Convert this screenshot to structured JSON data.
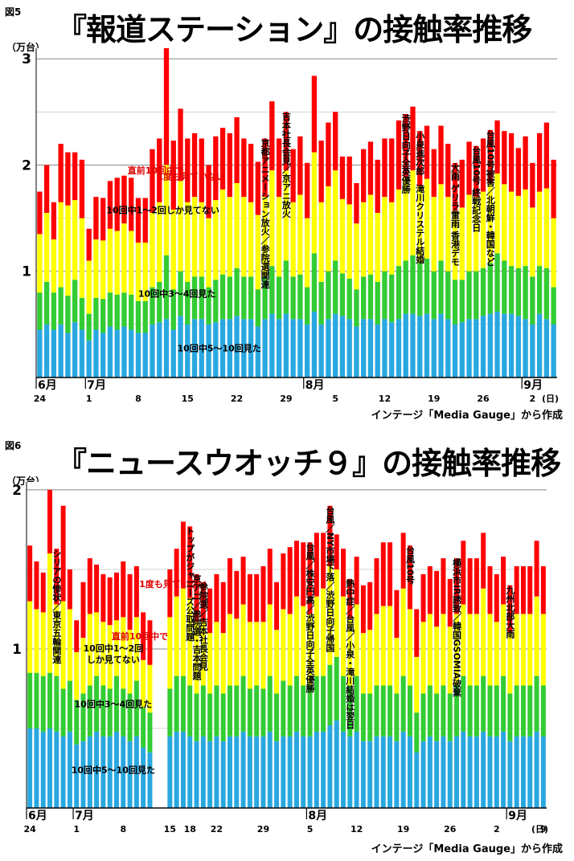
{
  "source_credit": "インテージ「Media Gauge」から作成",
  "colors": {
    "blue": "#29a8e0",
    "green": "#33cc33",
    "yellow": "#ffff00",
    "red": "#ff0000",
    "grid": "#888888"
  },
  "chart_data": [
    {
      "type": "bar",
      "stacked": true,
      "figure_label": "図5",
      "title": "『報道ステーション』の接触率推移",
      "ylabel": "（万台）",
      "ylim": [
        0,
        3.1
      ],
      "yticks": [
        1,
        2,
        3
      ],
      "grid": true,
      "x_ticks": [
        "24",
        "1",
        "8",
        "15",
        "22",
        "29",
        "5",
        "12",
        "19",
        "26",
        "2"
      ],
      "x_tick_days": [
        0,
        7,
        14,
        21,
        28,
        35,
        42,
        49,
        56,
        63,
        70
      ],
      "day_suffix": "(日)",
      "months": [
        {
          "label": "6月",
          "day": 0
        },
        {
          "label": "7月",
          "day": 7
        },
        {
          "label": "8月",
          "day": 38
        },
        {
          "label": "9月",
          "day": 69
        }
      ],
      "day_offsets": [
        0,
        1,
        2,
        3,
        4,
        5,
        6,
        7,
        8,
        9,
        10,
        11,
        12,
        13,
        14,
        15,
        16,
        17,
        18,
        19,
        20,
        21,
        22,
        23,
        24,
        25,
        26,
        27,
        28,
        29,
        30,
        31,
        32,
        33,
        34,
        35,
        36,
        37,
        38,
        39,
        40,
        41,
        42,
        43,
        44,
        45,
        46,
        47,
        48,
        49,
        50,
        51,
        52,
        53,
        54,
        55,
        56,
        57,
        58,
        59,
        60,
        61,
        62,
        63,
        64,
        65,
        66,
        67,
        68,
        69,
        70,
        71,
        72,
        73
      ],
      "series": [
        {
          "name": "10回中5～10回見た",
          "color": "blue",
          "values": [
            0.45,
            0.5,
            0.45,
            0.5,
            0.42,
            0.52,
            0.45,
            0.35,
            0.45,
            0.42,
            0.48,
            0.45,
            0.48,
            0.45,
            0.42,
            0.42,
            0.5,
            0.52,
            0.55,
            0.45,
            0.58,
            0.5,
            0.55,
            0.55,
            0.5,
            0.52,
            0.55,
            0.55,
            0.58,
            0.55,
            0.55,
            0.48,
            0.55,
            0.6,
            0.55,
            0.6,
            0.55,
            0.55,
            0.5,
            0.62,
            0.5,
            0.55,
            0.6,
            0.58,
            0.55,
            0.48,
            0.55,
            0.55,
            0.5,
            0.55,
            0.52,
            0.55,
            0.6,
            0.6,
            0.58,
            0.6,
            0.55,
            0.6,
            0.55,
            0.5,
            0.52,
            0.55,
            0.55,
            0.58,
            0.6,
            0.62,
            0.6,
            0.6,
            0.58,
            0.55,
            0.5,
            0.6,
            0.55,
            0.5
          ]
        },
        {
          "name": "10回中3～4回見た",
          "color": "green",
          "values": [
            0.35,
            0.4,
            0.35,
            0.35,
            0.35,
            0.4,
            0.3,
            0.25,
            0.3,
            0.32,
            0.32,
            0.33,
            0.32,
            0.33,
            0.3,
            0.3,
            0.35,
            0.38,
            0.6,
            0.38,
            0.42,
            0.4,
            0.4,
            0.4,
            0.35,
            0.4,
            0.42,
            0.4,
            0.45,
            0.4,
            0.4,
            0.35,
            0.4,
            0.45,
            0.4,
            0.5,
            0.4,
            0.42,
            0.35,
            0.55,
            0.4,
            0.45,
            0.5,
            0.4,
            0.38,
            0.35,
            0.4,
            0.42,
            0.4,
            0.45,
            0.45,
            0.5,
            0.5,
            0.55,
            0.5,
            0.52,
            0.45,
            0.5,
            0.45,
            0.42,
            0.4,
            0.45,
            0.45,
            0.45,
            0.48,
            0.55,
            0.5,
            0.45,
            0.45,
            0.5,
            0.45,
            0.45,
            0.48,
            0.35
          ]
        },
        {
          "name": "10回中1～2回しか見てない",
          "color": "yellow",
          "values": [
            0.55,
            0.65,
            0.5,
            0.8,
            0.85,
            0.75,
            0.75,
            0.5,
            0.55,
            0.55,
            0.6,
            0.6,
            0.65,
            0.6,
            0.55,
            0.55,
            0.7,
            0.75,
            0.85,
            0.75,
            0.85,
            0.75,
            0.75,
            0.7,
            0.65,
            0.75,
            0.8,
            0.75,
            0.8,
            0.75,
            0.7,
            0.7,
            0.75,
            0.9,
            0.75,
            0.85,
            0.7,
            0.75,
            0.65,
            0.95,
            0.75,
            0.8,
            0.85,
            0.7,
            0.7,
            0.62,
            0.7,
            0.75,
            0.65,
            0.7,
            0.68,
            0.72,
            0.78,
            0.8,
            0.72,
            0.75,
            0.7,
            0.72,
            0.7,
            0.65,
            0.68,
            0.72,
            0.7,
            0.72,
            0.75,
            0.75,
            0.72,
            0.7,
            0.68,
            0.72,
            0.65,
            0.7,
            0.75,
            0.65
          ]
        },
        {
          "name": "直前10回中で1度も見ていない",
          "color": "red",
          "values": [
            0.4,
            0.45,
            0.35,
            0.55,
            0.5,
            0.45,
            0.55,
            0.3,
            0.4,
            0.4,
            0.45,
            0.5,
            0.45,
            0.5,
            0.42,
            0.42,
            0.6,
            0.6,
            1.1,
            0.65,
            0.68,
            0.6,
            0.6,
            0.6,
            0.5,
            0.6,
            0.58,
            0.6,
            0.62,
            0.55,
            0.55,
            0.5,
            0.55,
            0.65,
            0.55,
            0.55,
            0.5,
            0.55,
            0.52,
            0.72,
            0.58,
            0.6,
            0.55,
            0.4,
            0.45,
            0.38,
            0.5,
            0.5,
            0.5,
            0.55,
            0.6,
            0.65,
            0.6,
            0.6,
            0.52,
            0.5,
            0.45,
            0.55,
            0.5,
            0.45,
            0.45,
            0.5,
            0.48,
            0.5,
            0.5,
            0.5,
            0.5,
            0.55,
            0.45,
            0.5,
            0.42,
            0.55,
            0.62,
            0.55
          ]
        }
      ],
      "band_labels": [
        {
          "text": "直前10回中で",
          "series": 3,
          "day": 17
        },
        {
          "text": "1度も見ていない",
          "series": 3,
          "day": 22
        },
        {
          "text": "10回中1～2回しか見てない",
          "series": 2,
          "day": 18
        },
        {
          "text": "10回中3～4回見た",
          "series": 1,
          "day": 20
        },
        {
          "text": "10回中5～10回見た",
          "series": 0,
          "day": 26
        }
      ],
      "annotations": [
        {
          "day": 32,
          "text": "京都アニメーション放火／参院選関連"
        },
        {
          "day": 35,
          "text": "吉本社長会見／京アニ放火"
        },
        {
          "day": 52,
          "text": "渋野日向子全英優勝"
        },
        {
          "day": 54,
          "text": "小泉進次郎　滝川クリステル結婚"
        },
        {
          "day": 59,
          "text": "大雨 ゲリラ雷雨 香港デモ"
        },
        {
          "day": 62,
          "text": "台風10号 終戦記念日"
        },
        {
          "day": 64,
          "text": "台風10号被害／北朝鮮・韓国など"
        }
      ]
    },
    {
      "type": "bar",
      "stacked": true,
      "figure_label": "図6",
      "title": "『ニュースウオッチ９』の接触率推移",
      "ylabel": "（万台）",
      "ylim": [
        0,
        2.05
      ],
      "yticks": [
        1,
        2
      ],
      "grid": true,
      "x_ticks": [
        "24",
        "1",
        "8",
        "15",
        "18",
        "22",
        "29",
        "5",
        "12",
        "19",
        "26",
        "2",
        "9"
      ],
      "x_tick_days": [
        0,
        7,
        14,
        21,
        24,
        28,
        35,
        42,
        49,
        56,
        63,
        70,
        77
      ],
      "day_suffix": "(日)",
      "months": [
        {
          "label": "6月",
          "day": 0
        },
        {
          "label": "7月",
          "day": 7
        },
        {
          "label": "8月",
          "day": 42
        },
        {
          "label": "9月",
          "day": 72
        }
      ],
      "day_offsets": [
        0,
        1,
        2,
        3,
        4,
        5,
        6,
        7,
        8,
        9,
        10,
        11,
        12,
        13,
        14,
        15,
        16,
        17,
        18,
        21,
        22,
        23,
        24,
        25,
        26,
        27,
        28,
        29,
        30,
        31,
        32,
        33,
        34,
        35,
        36,
        37,
        38,
        39,
        40,
        41,
        42,
        43,
        44,
        45,
        46,
        47,
        48,
        49,
        50,
        51,
        52,
        53,
        54,
        55,
        56,
        57,
        58,
        59,
        60,
        61,
        62,
        63,
        64,
        65,
        66,
        67,
        68,
        69,
        70,
        71,
        72,
        73,
        74,
        75,
        76,
        77
      ],
      "series": [
        {
          "name": "10回中5～10回見た",
          "color": "blue",
          "values": [
            0.5,
            0.5,
            0.48,
            0.5,
            0.48,
            0.45,
            0.48,
            0.4,
            0.42,
            0.45,
            0.48,
            0.45,
            0.45,
            0.48,
            0.45,
            0.42,
            0.45,
            0.38,
            0.35,
            0.45,
            0.48,
            0.48,
            0.45,
            0.42,
            0.45,
            0.42,
            0.45,
            0.42,
            0.45,
            0.45,
            0.48,
            0.45,
            0.45,
            0.45,
            0.48,
            0.42,
            0.45,
            0.45,
            0.48,
            0.45,
            0.45,
            0.48,
            0.48,
            0.52,
            0.55,
            0.48,
            0.45,
            0.48,
            0.42,
            0.42,
            0.45,
            0.45,
            0.45,
            0.42,
            0.48,
            0.45,
            0.35,
            0.42,
            0.45,
            0.42,
            0.45,
            0.42,
            0.45,
            0.48,
            0.45,
            0.45,
            0.48,
            0.45,
            0.45,
            0.48,
            0.42,
            0.45,
            0.45,
            0.45,
            0.48,
            0.45
          ]
        },
        {
          "name": "10回中3～4回見た",
          "color": "green",
          "values": [
            0.35,
            0.35,
            0.35,
            0.35,
            0.35,
            0.3,
            0.32,
            0.28,
            0.3,
            0.32,
            0.35,
            0.32,
            0.3,
            0.35,
            0.3,
            0.3,
            0.35,
            0.25,
            0.25,
            0.3,
            0.35,
            0.35,
            0.32,
            0.3,
            0.32,
            0.3,
            0.32,
            0.3,
            0.32,
            0.32,
            0.35,
            0.3,
            0.32,
            0.3,
            0.35,
            0.3,
            0.35,
            0.32,
            0.35,
            0.32,
            0.32,
            0.35,
            0.35,
            0.38,
            0.4,
            0.35,
            0.32,
            0.35,
            0.3,
            0.3,
            0.32,
            0.32,
            0.32,
            0.3,
            0.35,
            0.32,
            0.25,
            0.3,
            0.32,
            0.3,
            0.32,
            0.3,
            0.32,
            0.35,
            0.32,
            0.32,
            0.35,
            0.32,
            0.32,
            0.35,
            0.3,
            0.32,
            0.32,
            0.32,
            0.35,
            0.32
          ]
        },
        {
          "name": "10回中1～2回しか見てない",
          "color": "yellow",
          "values": [
            0.45,
            0.4,
            0.4,
            0.75,
            0.45,
            0.55,
            0.45,
            0.3,
            0.35,
            0.45,
            0.4,
            0.4,
            0.4,
            0.35,
            0.45,
            0.4,
            0.4,
            0.3,
            0.3,
            0.45,
            0.5,
            0.55,
            0.55,
            0.45,
            0.4,
            0.38,
            0.4,
            0.38,
            0.45,
            0.42,
            0.45,
            0.42,
            0.4,
            0.42,
            0.45,
            0.4,
            0.45,
            0.45,
            0.5,
            0.5,
            0.45,
            0.5,
            0.55,
            0.62,
            0.55,
            0.5,
            0.42,
            0.45,
            0.38,
            0.4,
            0.45,
            0.5,
            0.5,
            0.35,
            0.55,
            0.48,
            0.35,
            0.45,
            0.45,
            0.42,
            0.45,
            0.42,
            0.45,
            0.45,
            0.45,
            0.45,
            0.55,
            0.45,
            0.4,
            0.45,
            0.38,
            0.45,
            0.45,
            0.45,
            0.5,
            0.45
          ]
        },
        {
          "name": "直前10回中で1度も見ていない",
          "color": "red",
          "values": [
            0.35,
            0.3,
            0.25,
            0.4,
            0.35,
            0.6,
            0.25,
            0.2,
            0.35,
            0.35,
            0.3,
            0.3,
            0.3,
            0.3,
            0.35,
            0.35,
            0.32,
            0.3,
            0.28,
            0.3,
            0.3,
            0.42,
            0.45,
            0.3,
            0.25,
            0.28,
            0.3,
            0.32,
            0.35,
            0.3,
            0.3,
            0.3,
            0.3,
            0.35,
            0.35,
            0.3,
            0.35,
            0.42,
            0.35,
            0.4,
            0.45,
            0.4,
            0.35,
            0.38,
            0.22,
            0.3,
            0.25,
            0.3,
            0.3,
            0.3,
            0.35,
            0.4,
            0.4,
            0.3,
            0.35,
            0.4,
            0.3,
            0.3,
            0.3,
            0.35,
            0.35,
            0.3,
            0.35,
            0.4,
            0.35,
            0.35,
            0.35,
            0.3,
            0.3,
            0.3,
            0.3,
            0.3,
            0.3,
            0.3,
            0.35,
            0.3
          ]
        }
      ],
      "band_labels": [
        {
          "text": "直前10回中で",
          "series": 3,
          "day": 17
        },
        {
          "text": "1度も見ていない",
          "series": 3,
          "day": 22
        },
        {
          "text": "10回中1～2回",
          "series": 2,
          "day": 13
        },
        {
          "text": "しか見てない",
          "series": 2,
          "day": 13
        },
        {
          "text": "10回中3～4回見た",
          "series": 1,
          "day": 13
        },
        {
          "text": "10回中5～10回見た",
          "series": 0,
          "day": 13
        }
      ],
      "annotations": [
        {
          "day": 4,
          "text": "シリアの惨状／東京五輪関連"
        },
        {
          "day": 24,
          "text": "トップがジャニーズ公取問題"
        },
        {
          "day": 25,
          "text": "京アニ／参院選・吉本問題"
        },
        {
          "day": 26,
          "text": "参院選／吉本社長会見"
        },
        {
          "day": 42,
          "text": "台風／株安円高／渋野日向子全英優勝"
        },
        {
          "day": 45,
          "text": "台風／NY市場下落／渋野日向子帰国"
        },
        {
          "day": 48,
          "text": "熱中症／台風／小泉・滝川結婚は翌日"
        },
        {
          "day": 57,
          "text": "台風10号"
        },
        {
          "day": 64,
          "text": "横浜市IR誘致／韓国GSOMIA破棄"
        },
        {
          "day": 72,
          "text": "九州北部大雨"
        }
      ]
    }
  ]
}
